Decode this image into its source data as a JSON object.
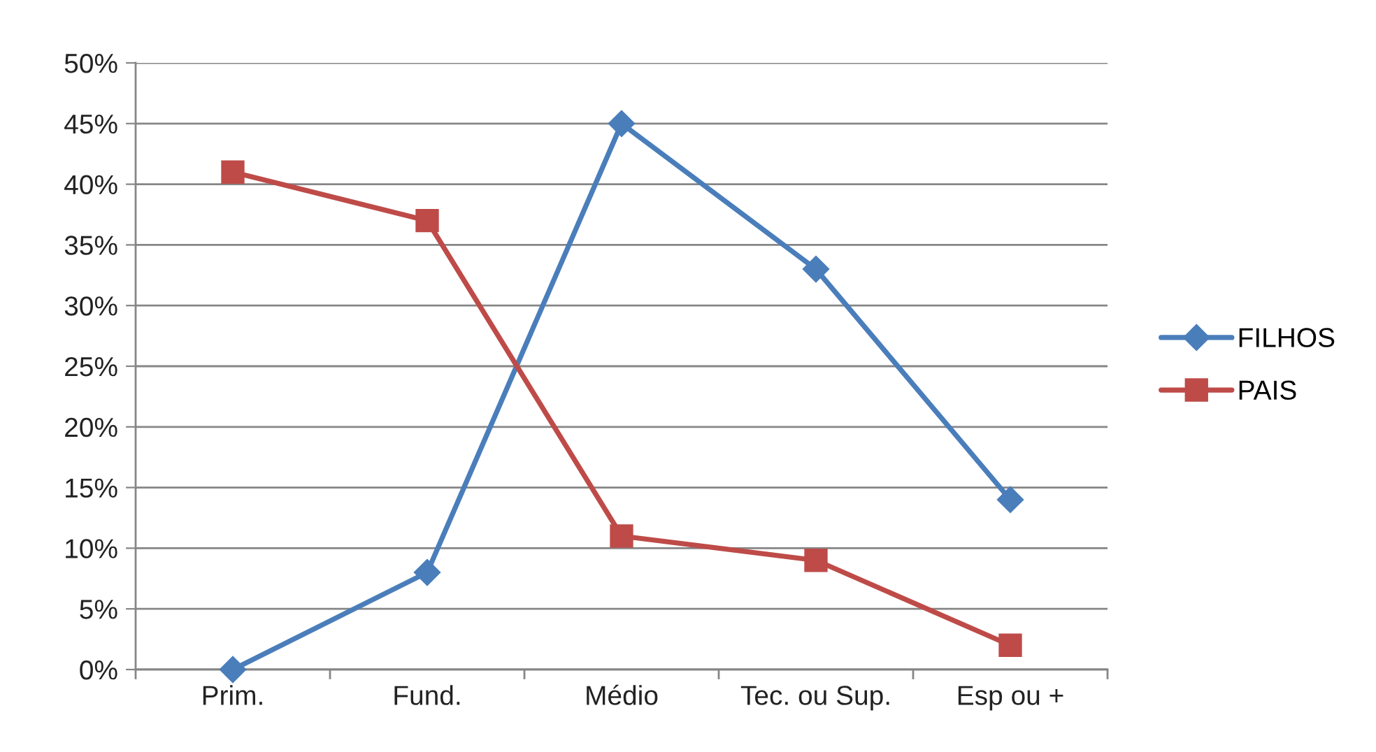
{
  "chart_data": {
    "type": "line",
    "categories": [
      "Prim.",
      "Fund.",
      "Médio",
      "Tec. ou Sup.",
      "Esp ou +"
    ],
    "series": [
      {
        "name": "FILHOS",
        "color": "#4a7ebb",
        "marker": "diamond",
        "values": [
          0,
          8,
          45,
          33,
          14
        ]
      },
      {
        "name": "PAIS",
        "color": "#be4b48",
        "marker": "square",
        "values": [
          41,
          37,
          11,
          9,
          2
        ]
      }
    ],
    "ylim": [
      0,
      50
    ],
    "yticks": [
      {
        "value": 0,
        "label": "0%"
      },
      {
        "value": 5,
        "label": "5%"
      },
      {
        "value": 10,
        "label": "10%"
      },
      {
        "value": 15,
        "label": "15%"
      },
      {
        "value": 20,
        "label": "20%"
      },
      {
        "value": 25,
        "label": "25%"
      },
      {
        "value": 30,
        "label": "30%"
      },
      {
        "value": 35,
        "label": "35%"
      },
      {
        "value": 40,
        "label": "40%"
      },
      {
        "value": 45,
        "label": "45%"
      },
      {
        "value": 50,
        "label": "50%"
      }
    ],
    "grid": "y",
    "legend": "right",
    "line_style": "solid"
  }
}
